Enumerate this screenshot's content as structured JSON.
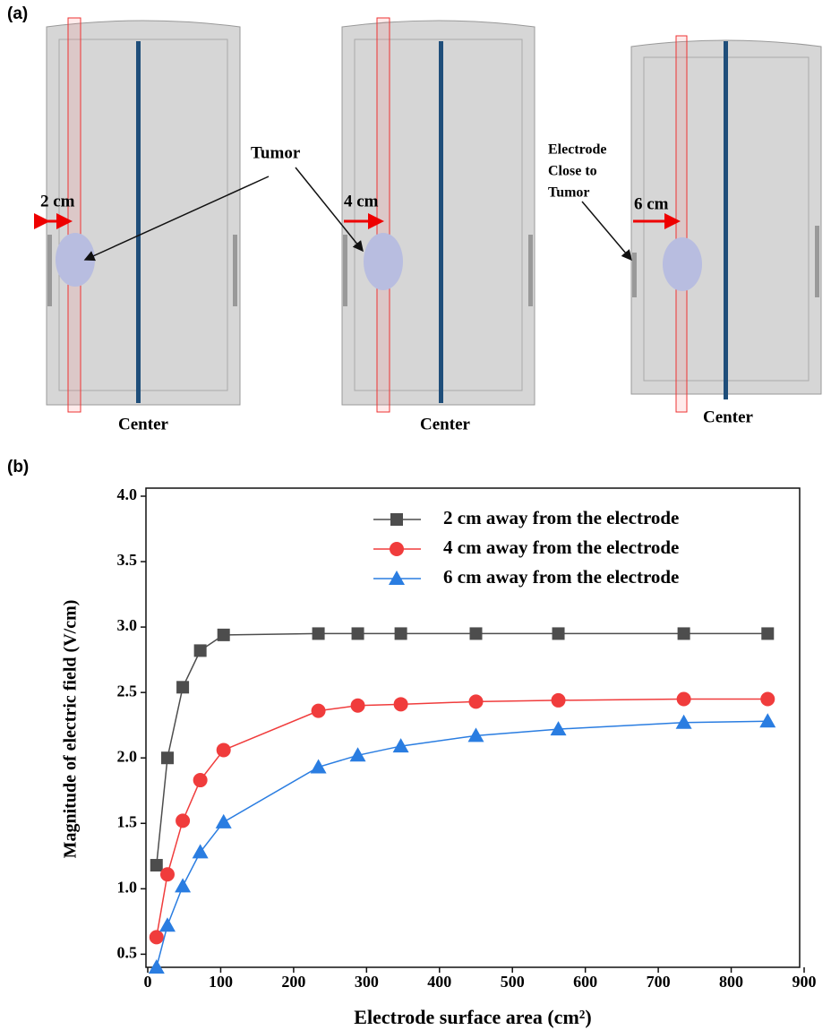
{
  "panel_a": {
    "label": "(a)",
    "distances": [
      "2 cm",
      "4 cm",
      "6 cm"
    ],
    "tumor": "Tumor",
    "electrode_note": [
      "Electrode",
      "Close to",
      "Tumor"
    ],
    "center": [
      "Center",
      "Center",
      "Center"
    ]
  },
  "panel_b": {
    "label": "(b)"
  },
  "chart_data": {
    "type": "line",
    "x_label": "Electrode surface area (cm²)",
    "y_label": "Magnitude of electric field (V/cm)",
    "x": [
      12,
      27,
      48,
      72,
      104,
      234,
      288,
      347,
      450,
      563,
      735,
      850
    ],
    "series": [
      {
        "name": "2 cm away from the electrode",
        "color": "#4d4d4d",
        "marker": "square",
        "values": [
          1.18,
          2.0,
          2.54,
          2.82,
          2.94,
          2.95,
          2.95,
          2.95,
          2.95,
          2.95,
          2.95,
          2.95
        ]
      },
      {
        "name": "4 cm away from the electrode",
        "color": "#f03c3c",
        "marker": "circle",
        "values": [
          0.63,
          1.11,
          1.52,
          1.83,
          2.06,
          2.36,
          2.4,
          2.41,
          2.43,
          2.44,
          2.45,
          2.45
        ]
      },
      {
        "name": "6 cm away from the electrode",
        "color": "#2a7de1",
        "marker": "triangle",
        "values": [
          0.4,
          0.72,
          1.02,
          1.28,
          1.51,
          1.93,
          2.02,
          2.09,
          2.17,
          2.22,
          2.27,
          2.28
        ]
      }
    ],
    "xlim": [
      0,
      900
    ],
    "ylim": [
      0.4,
      4.0
    ],
    "xticks": [
      0,
      100,
      200,
      300,
      400,
      500,
      600,
      700,
      800,
      900
    ],
    "yticks": [
      {
        "value": 0.5,
        "label": "0.5"
      },
      {
        "value": 1.0,
        "label": "1.0"
      },
      {
        "value": 1.5,
        "label": "1.5"
      },
      {
        "value": 2.0,
        "label": "2.0"
      },
      {
        "value": 2.5,
        "label": "2.5"
      },
      {
        "value": 3.0,
        "label": "3.0"
      },
      {
        "value": 3.5,
        "label": "3.5"
      },
      {
        "value": 4.0,
        "label": "4.0"
      }
    ],
    "legend": "upper right"
  }
}
